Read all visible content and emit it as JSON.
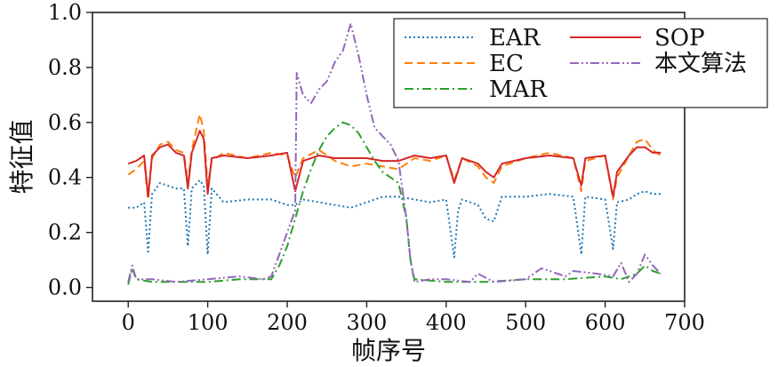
{
  "chart_data": {
    "type": "line",
    "title": "",
    "xlabel": "帧序号",
    "ylabel": "特征值",
    "xlim": [
      -45,
      700
    ],
    "ylim": [
      -0.05,
      1.0
    ],
    "xticks": [
      0,
      100,
      200,
      300,
      400,
      500,
      600,
      700
    ],
    "yticks": [
      0.0,
      0.2,
      0.4,
      0.6,
      0.8,
      1.0
    ],
    "xtick_labels": [
      "0",
      "100",
      "200",
      "300",
      "400",
      "500",
      "600",
      "700"
    ],
    "ytick_labels": [
      "0.0",
      "0.2",
      "0.4",
      "0.6",
      "0.8",
      "1.0"
    ],
    "grid": false,
    "legend_position": "top-right",
    "series": [
      {
        "name": "EAR",
        "color": "#1f77b4",
        "dash": "dotted",
        "points": [
          [
            0,
            0.29
          ],
          [
            10,
            0.29
          ],
          [
            20,
            0.31
          ],
          [
            25,
            0.13
          ],
          [
            30,
            0.34
          ],
          [
            40,
            0.38
          ],
          [
            50,
            0.37
          ],
          [
            60,
            0.36
          ],
          [
            70,
            0.36
          ],
          [
            75,
            0.15
          ],
          [
            80,
            0.36
          ],
          [
            90,
            0.39
          ],
          [
            95,
            0.37
          ],
          [
            100,
            0.12
          ],
          [
            105,
            0.36
          ],
          [
            120,
            0.31
          ],
          [
            150,
            0.32
          ],
          [
            180,
            0.32
          ],
          [
            200,
            0.3
          ],
          [
            210,
            0.3
          ],
          [
            220,
            0.32
          ],
          [
            240,
            0.31
          ],
          [
            260,
            0.3
          ],
          [
            280,
            0.29
          ],
          [
            300,
            0.31
          ],
          [
            320,
            0.33
          ],
          [
            340,
            0.33
          ],
          [
            360,
            0.32
          ],
          [
            380,
            0.31
          ],
          [
            400,
            0.32
          ],
          [
            410,
            0.11
          ],
          [
            415,
            0.28
          ],
          [
            420,
            0.32
          ],
          [
            440,
            0.3
          ],
          [
            450,
            0.25
          ],
          [
            460,
            0.24
          ],
          [
            470,
            0.33
          ],
          [
            500,
            0.33
          ],
          [
            530,
            0.34
          ],
          [
            560,
            0.33
          ],
          [
            570,
            0.12
          ],
          [
            575,
            0.33
          ],
          [
            600,
            0.32
          ],
          [
            610,
            0.14
          ],
          [
            615,
            0.31
          ],
          [
            630,
            0.32
          ],
          [
            640,
            0.34
          ],
          [
            650,
            0.35
          ],
          [
            660,
            0.34
          ],
          [
            670,
            0.34
          ]
        ]
      },
      {
        "name": "EC",
        "color": "#ff7f0e",
        "dash": "dashed",
        "points": [
          [
            0,
            0.41
          ],
          [
            10,
            0.43
          ],
          [
            20,
            0.46
          ],
          [
            25,
            0.32
          ],
          [
            30,
            0.47
          ],
          [
            40,
            0.52
          ],
          [
            50,
            0.53
          ],
          [
            60,
            0.5
          ],
          [
            70,
            0.49
          ],
          [
            75,
            0.38
          ],
          [
            80,
            0.5
          ],
          [
            90,
            0.63
          ],
          [
            95,
            0.57
          ],
          [
            100,
            0.37
          ],
          [
            105,
            0.46
          ],
          [
            120,
            0.49
          ],
          [
            150,
            0.47
          ],
          [
            180,
            0.49
          ],
          [
            200,
            0.48
          ],
          [
            210,
            0.4
          ],
          [
            220,
            0.47
          ],
          [
            240,
            0.5
          ],
          [
            260,
            0.46
          ],
          [
            280,
            0.44
          ],
          [
            300,
            0.45
          ],
          [
            320,
            0.44
          ],
          [
            340,
            0.43
          ],
          [
            360,
            0.47
          ],
          [
            380,
            0.46
          ],
          [
            400,
            0.48
          ],
          [
            410,
            0.39
          ],
          [
            420,
            0.47
          ],
          [
            440,
            0.44
          ],
          [
            450,
            0.4
          ],
          [
            460,
            0.38
          ],
          [
            470,
            0.44
          ],
          [
            500,
            0.47
          ],
          [
            530,
            0.49
          ],
          [
            560,
            0.47
          ],
          [
            570,
            0.35
          ],
          [
            575,
            0.46
          ],
          [
            600,
            0.48
          ],
          [
            610,
            0.32
          ],
          [
            615,
            0.4
          ],
          [
            630,
            0.48
          ],
          [
            640,
            0.53
          ],
          [
            650,
            0.54
          ],
          [
            660,
            0.5
          ],
          [
            670,
            0.48
          ]
        ]
      },
      {
        "name": "MAR",
        "color": "#2ca02c",
        "dash": "dashdot",
        "points": [
          [
            0,
            0.01
          ],
          [
            5,
            0.07
          ],
          [
            10,
            0.03
          ],
          [
            30,
            0.02
          ],
          [
            60,
            0.02
          ],
          [
            100,
            0.02
          ],
          [
            140,
            0.03
          ],
          [
            180,
            0.03
          ],
          [
            190,
            0.08
          ],
          [
            200,
            0.15
          ],
          [
            210,
            0.25
          ],
          [
            220,
            0.35
          ],
          [
            230,
            0.43
          ],
          [
            240,
            0.5
          ],
          [
            250,
            0.55
          ],
          [
            260,
            0.58
          ],
          [
            270,
            0.6
          ],
          [
            280,
            0.59
          ],
          [
            290,
            0.56
          ],
          [
            300,
            0.51
          ],
          [
            310,
            0.46
          ],
          [
            320,
            0.42
          ],
          [
            330,
            0.4
          ],
          [
            340,
            0.38
          ],
          [
            350,
            0.25
          ],
          [
            355,
            0.1
          ],
          [
            360,
            0.03
          ],
          [
            400,
            0.02
          ],
          [
            450,
            0.02
          ],
          [
            500,
            0.03
          ],
          [
            550,
            0.03
          ],
          [
            600,
            0.04
          ],
          [
            620,
            0.03
          ],
          [
            640,
            0.05
          ],
          [
            650,
            0.08
          ],
          [
            660,
            0.06
          ],
          [
            670,
            0.05
          ]
        ]
      },
      {
        "name": "SOP",
        "color": "#d62728",
        "dash": "solid",
        "points": [
          [
            0,
            0.45
          ],
          [
            10,
            0.46
          ],
          [
            20,
            0.48
          ],
          [
            25,
            0.33
          ],
          [
            30,
            0.48
          ],
          [
            40,
            0.51
          ],
          [
            50,
            0.52
          ],
          [
            60,
            0.49
          ],
          [
            70,
            0.48
          ],
          [
            75,
            0.36
          ],
          [
            80,
            0.49
          ],
          [
            90,
            0.57
          ],
          [
            95,
            0.54
          ],
          [
            100,
            0.34
          ],
          [
            105,
            0.47
          ],
          [
            120,
            0.48
          ],
          [
            150,
            0.47
          ],
          [
            180,
            0.48
          ],
          [
            200,
            0.49
          ],
          [
            210,
            0.35
          ],
          [
            220,
            0.46
          ],
          [
            240,
            0.48
          ],
          [
            260,
            0.47
          ],
          [
            280,
            0.47
          ],
          [
            300,
            0.47
          ],
          [
            320,
            0.46
          ],
          [
            340,
            0.46
          ],
          [
            360,
            0.48
          ],
          [
            380,
            0.47
          ],
          [
            400,
            0.48
          ],
          [
            410,
            0.38
          ],
          [
            420,
            0.47
          ],
          [
            440,
            0.45
          ],
          [
            450,
            0.42
          ],
          [
            460,
            0.4
          ],
          [
            470,
            0.45
          ],
          [
            500,
            0.47
          ],
          [
            530,
            0.48
          ],
          [
            560,
            0.47
          ],
          [
            570,
            0.37
          ],
          [
            575,
            0.47
          ],
          [
            600,
            0.48
          ],
          [
            610,
            0.33
          ],
          [
            615,
            0.42
          ],
          [
            630,
            0.48
          ],
          [
            640,
            0.51
          ],
          [
            650,
            0.51
          ],
          [
            660,
            0.49
          ],
          [
            670,
            0.49
          ]
        ]
      },
      {
        "name": "本文算法",
        "color": "#9467bd",
        "dash": "dashdotdot",
        "points": [
          [
            0,
            0.02
          ],
          [
            5,
            0.08
          ],
          [
            10,
            0.03
          ],
          [
            30,
            0.03
          ],
          [
            60,
            0.02
          ],
          [
            100,
            0.03
          ],
          [
            140,
            0.04
          ],
          [
            170,
            0.03
          ],
          [
            180,
            0.04
          ],
          [
            190,
            0.12
          ],
          [
            200,
            0.2
          ],
          [
            210,
            0.28
          ],
          [
            212,
            0.78
          ],
          [
            220,
            0.7
          ],
          [
            230,
            0.67
          ],
          [
            240,
            0.72
          ],
          [
            250,
            0.75
          ],
          [
            260,
            0.82
          ],
          [
            270,
            0.86
          ],
          [
            280,
            0.96
          ],
          [
            290,
            0.84
          ],
          [
            300,
            0.7
          ],
          [
            310,
            0.58
          ],
          [
            320,
            0.55
          ],
          [
            330,
            0.52
          ],
          [
            340,
            0.46
          ],
          [
            350,
            0.25
          ],
          [
            355,
            0.1
          ],
          [
            360,
            0.02
          ],
          [
            380,
            0.03
          ],
          [
            400,
            0.03
          ],
          [
            430,
            0.02
          ],
          [
            440,
            0.05
          ],
          [
            460,
            0.02
          ],
          [
            500,
            0.03
          ],
          [
            520,
            0.07
          ],
          [
            540,
            0.05
          ],
          [
            550,
            0.04
          ],
          [
            560,
            0.06
          ],
          [
            590,
            0.05
          ],
          [
            610,
            0.04
          ],
          [
            620,
            0.09
          ],
          [
            630,
            0.02
          ],
          [
            640,
            0.05
          ],
          [
            650,
            0.12
          ],
          [
            660,
            0.08
          ],
          [
            670,
            0.05
          ]
        ]
      }
    ]
  }
}
